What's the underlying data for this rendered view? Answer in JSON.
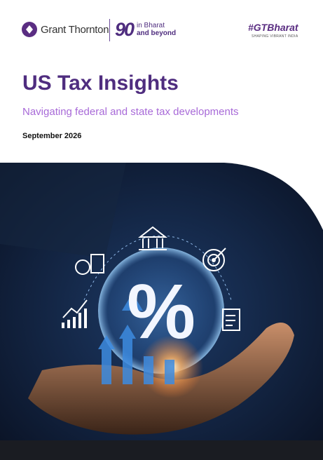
{
  "header": {
    "brand": "Grant Thornton",
    "anniversary_number": "90",
    "anniversary_line1": "in Bharat",
    "anniversary_line2": "and beyond",
    "hashtag": "#GTBharat",
    "tagline": "SHAPING VIBRANT INDIA"
  },
  "cover": {
    "title": "US Tax Insights",
    "subtitle": "Navigating federal and state tax developments",
    "date": "September 2026"
  },
  "illustration": {
    "symbol": "%"
  }
}
